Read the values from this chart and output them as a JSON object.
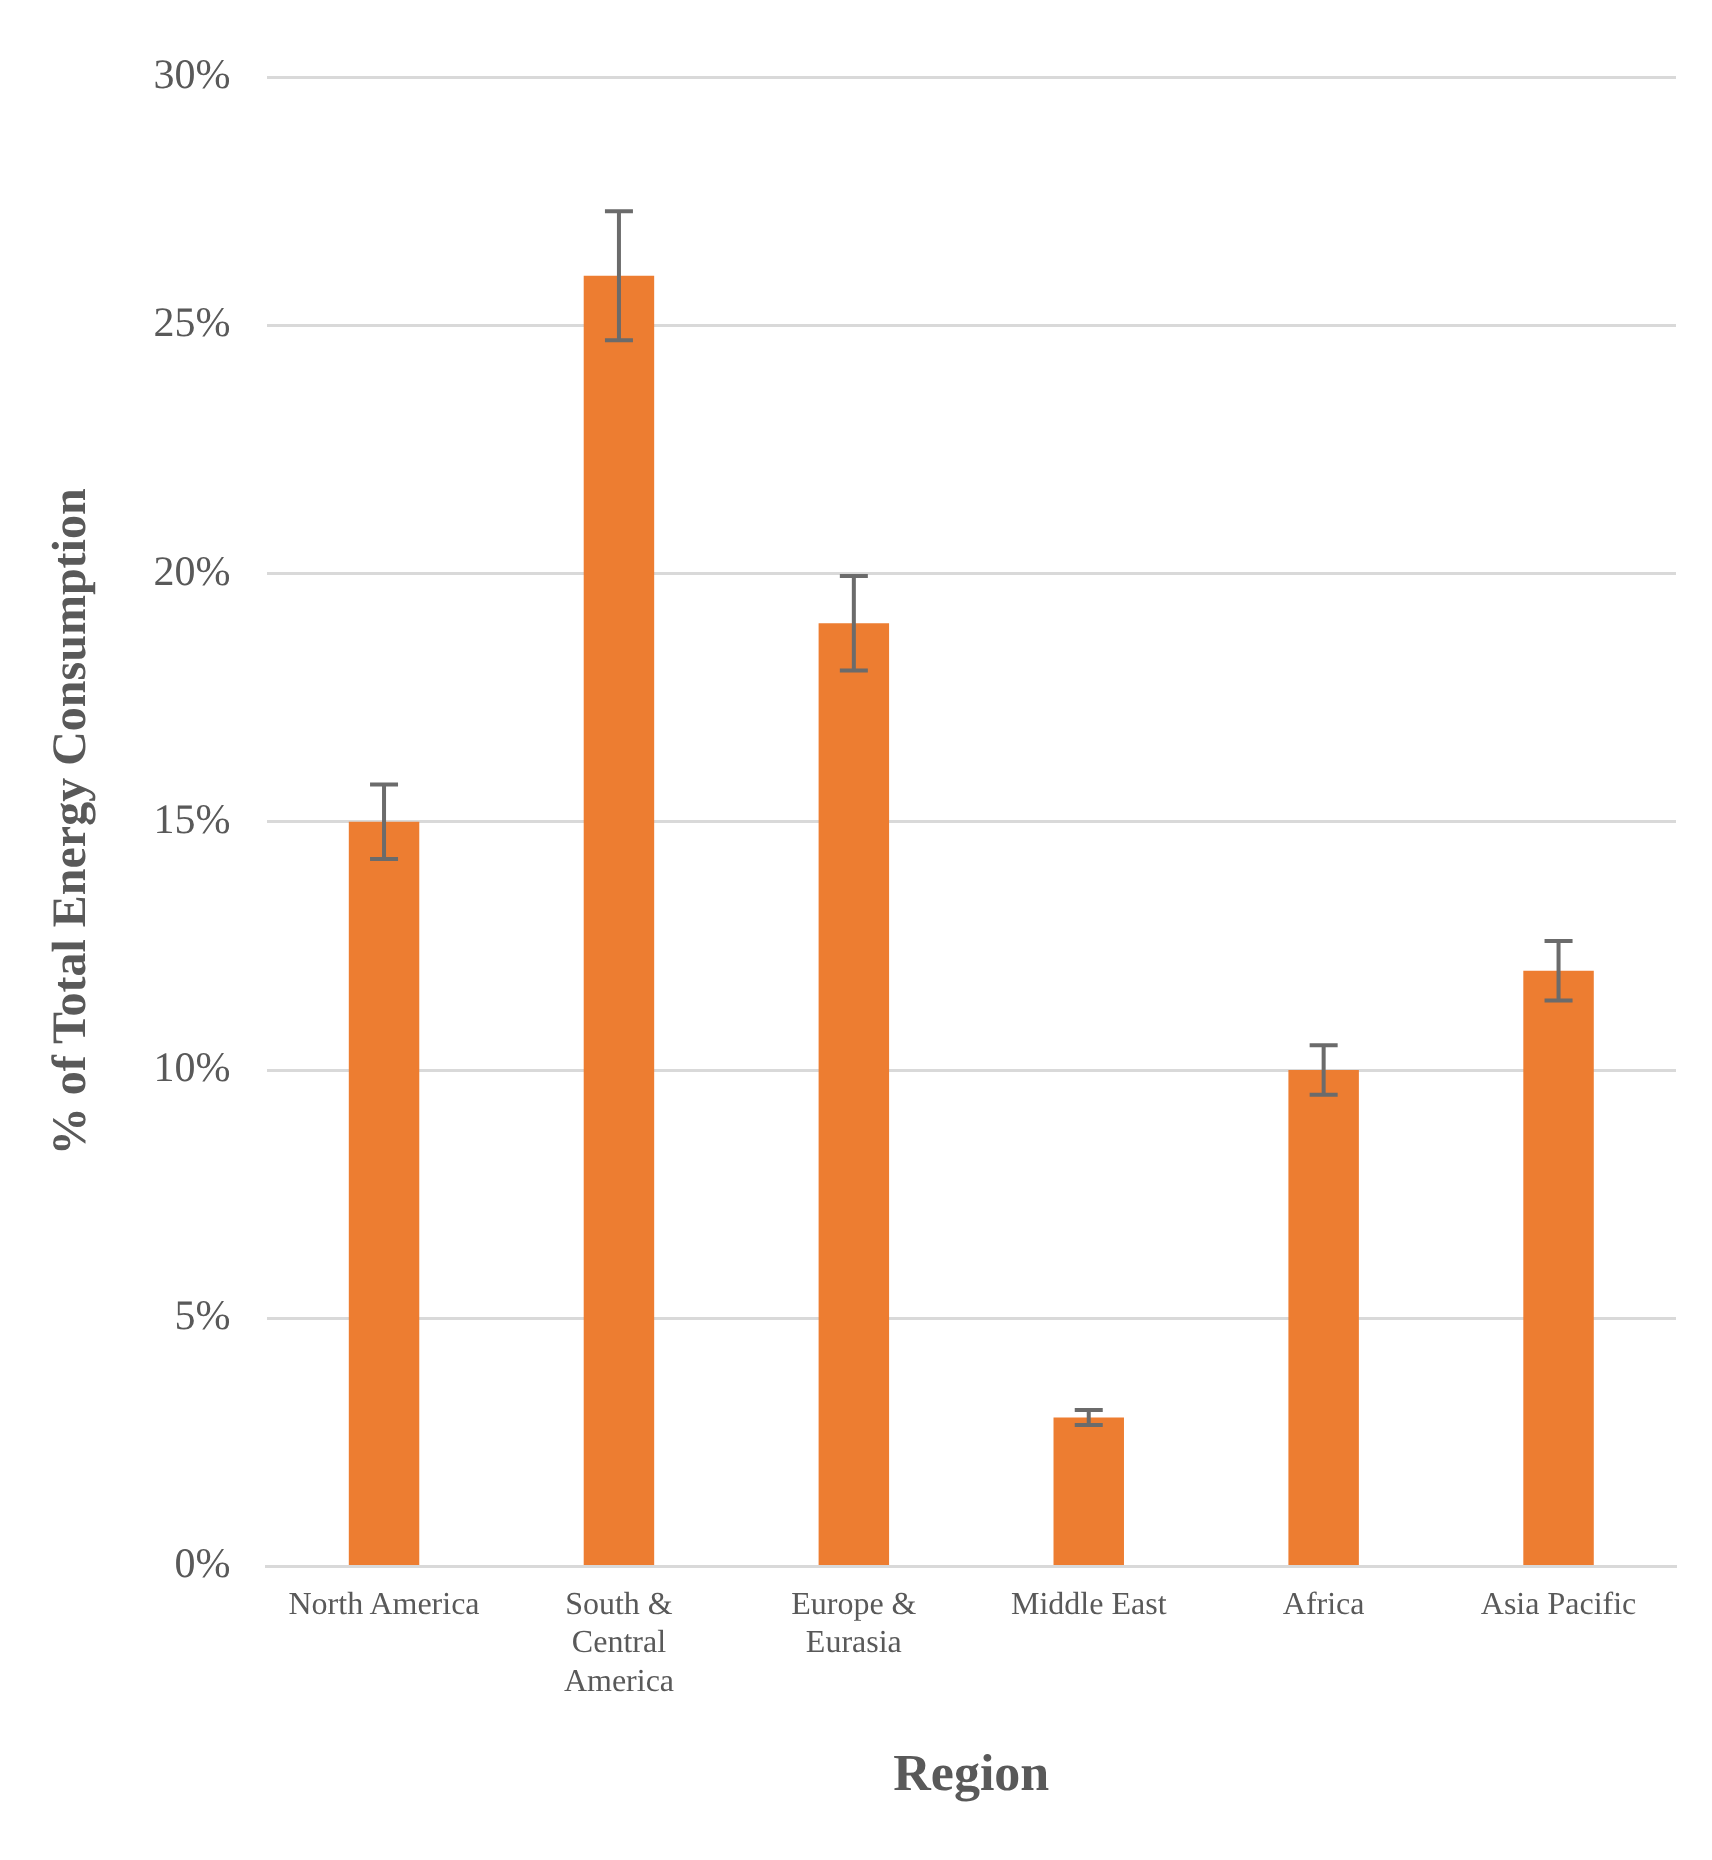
{
  "chart_data": {
    "type": "bar",
    "xlabel": "Region",
    "ylabel": "% of Total Energy Consumption",
    "categories": [
      "North America",
      "South & Central America",
      "Europe & Eurasia",
      "Middle East",
      "Africa",
      "Asia Pacific"
    ],
    "values": [
      15,
      26,
      19,
      3,
      10,
      12
    ],
    "errors": [
      0.75,
      1.3,
      0.95,
      0.15,
      0.5,
      0.6
    ],
    "color": "#ed7d31",
    "ylim": [
      0,
      30
    ],
    "yticks": [
      {
        "value": 0,
        "label": "0%"
      },
      {
        "value": 5,
        "label": "5%"
      },
      {
        "value": 10,
        "label": "10%"
      },
      {
        "value": 15,
        "label": "15%"
      },
      {
        "value": 20,
        "label": "20%"
      },
      {
        "value": 25,
        "label": "25%"
      },
      {
        "value": 30,
        "label": "30%"
      }
    ],
    "grid": "y",
    "legend": false
  }
}
